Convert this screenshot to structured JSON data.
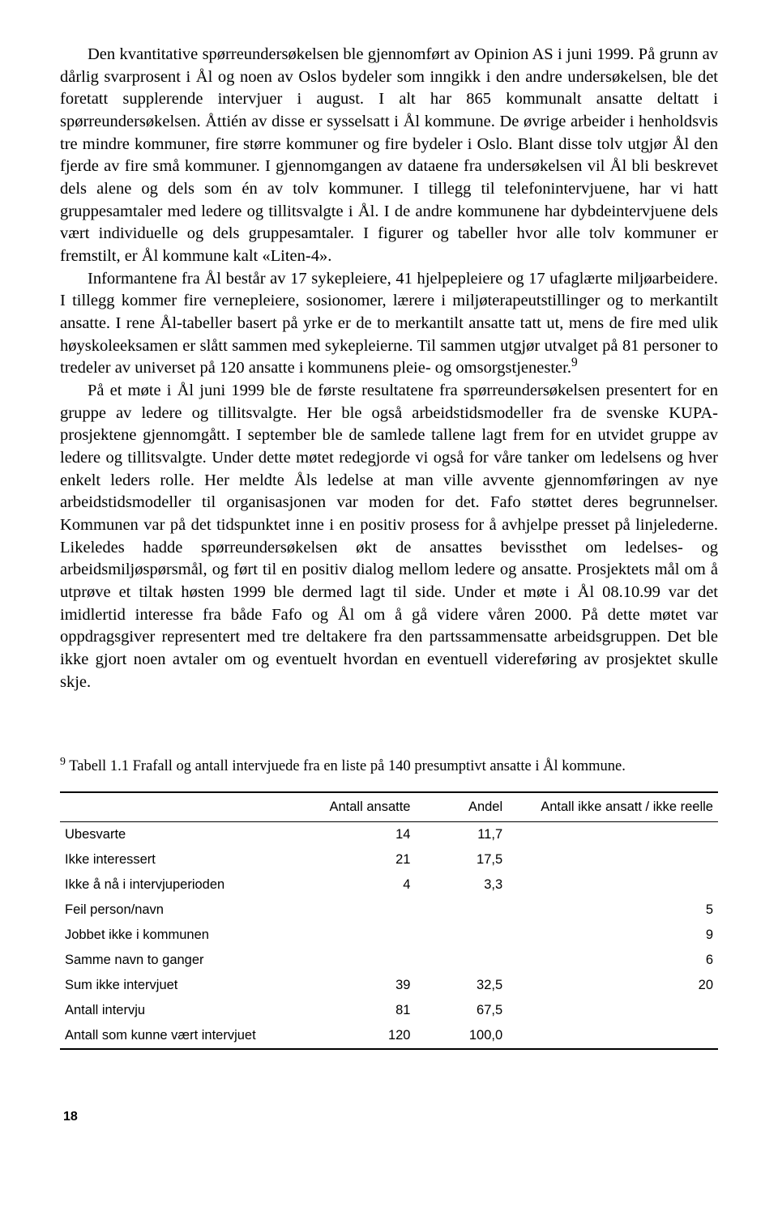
{
  "paragraphs": {
    "p1_first": "Den kvantitative spørreundersøkelsen ble gjennomført av Opinion AS i juni 1999. På grunn av dårlig svarprosent i Ål og noen av Oslos bydeler som inngikk i den andre undersøkelsen, ble det foretatt supplerende intervjuer i august. I alt har 865 kommunalt ansatte deltatt i spørreundersøkelsen. Åttién av disse er sysselsatt i Ål kommune. De øvrige arbeider i henholdsvis tre mindre kommuner, fire større kommuner og fire bydeler i Oslo. Blant disse tolv utgjør Ål den fjerde av fire små kommuner. I gjennomgangen av dataene fra undersøkelsen vil Ål bli beskrevet dels alene og dels som én av tolv kommuner. I tillegg til telefonintervjuene, har vi hatt gruppesamtaler med ledere og tillitsvalgte i Ål. I de andre kommunene har dybdeintervjuene dels vært individuelle og dels gruppesamtaler. I figurer og tabeller hvor alle tolv kommuner er fremstilt, er Ål kommune kalt «Liten-4».",
    "p2_pre": "Informantene fra Ål består av 17 sykepleiere, 41 hjelpepleiere og 17 ufaglærte miljøarbeidere. I tillegg kommer fire vernepleiere, sosionomer, lærere i miljøterapeutstillinger og to merkantilt ansatte. I rene Ål-tabeller basert på yrke er de to merkantilt ansatte tatt ut, mens de fire med ulik høyskoleeksamen er slått sammen med sykepleierne. Til sammen utgjør utvalget på 81 personer to tredeler av universet på 120 ansatte i kommunens pleie- og omsorgstjenester.",
    "p2_fn": "9",
    "p3": "På et møte i Ål juni 1999 ble de første resultatene fra spørreundersøkelsen presentert for en gruppe av ledere og tillitsvalgte. Her ble også arbeidstidsmodeller fra de svenske KUPA-prosjektene gjennomgått. I september ble de samlede tallene lagt frem for en utvidet gruppe av ledere og tillitsvalgte. Under dette møtet redegjorde vi også for våre tanker om ledelsens og hver enkelt leders rolle. Her meldte Åls ledelse at man ville avvente gjennomføringen av nye arbeidstidsmodeller til organisasjonen var moden for det. Fafo støttet deres begrunnelser. Kommunen var på det tidspunktet inne i en positiv prosess for å avhjelpe presset på linjelederne. Likeledes hadde spørreundersøkelsen økt de ansattes bevissthet om ledelses- og arbeidsmiljøspørsmål, og ført til en positiv dialog mellom ledere og ansatte. Prosjektets mål om å utprøve et tiltak høsten 1999 ble dermed lagt til side. Under et møte i Ål 08.10.99 var det imidlertid interesse fra både Fafo og Ål om å gå videre våren 2000. På dette møtet var oppdragsgiver representert med tre deltakere fra den partssammensatte arbeidsgruppen. Det ble ikke gjort noen avtaler om og eventuelt hvordan en eventuell videreføring av prosjektet skulle skje."
  },
  "footnote": {
    "marker": "9",
    "text": " Tabell 1.1 Frafall og antall intervjuede fra en liste på 140 presumptivt ansatte i Ål kommune."
  },
  "table": {
    "columns": [
      "",
      "Antall ansatte",
      "Andel",
      "Antall ikke ansatt / ikke reelle"
    ],
    "rows": [
      {
        "label": "Ubesvarte",
        "c1": "14",
        "c2": "11,7",
        "c3": ""
      },
      {
        "label": "Ikke interessert",
        "c1": "21",
        "c2": "17,5",
        "c3": ""
      },
      {
        "label": "Ikke å nå i intervjuperioden",
        "c1": "4",
        "c2": "3,3",
        "c3": ""
      },
      {
        "label": "Feil person/navn",
        "c1": "",
        "c2": "",
        "c3": "5"
      },
      {
        "label": "Jobbet ikke i kommunen",
        "c1": "",
        "c2": "",
        "c3": "9"
      },
      {
        "label": "Samme navn to ganger",
        "c1": "",
        "c2": "",
        "c3": "6"
      },
      {
        "label": "Sum ikke intervjuet",
        "c1": "39",
        "c2": "32,5",
        "c3": "20"
      },
      {
        "label": "Antall intervju",
        "c1": "81",
        "c2": "67,5",
        "c3": ""
      },
      {
        "label": "Antall som kunne vært intervjuet",
        "c1": "120",
        "c2": "100,0",
        "c3": ""
      }
    ]
  },
  "page_number": "18"
}
